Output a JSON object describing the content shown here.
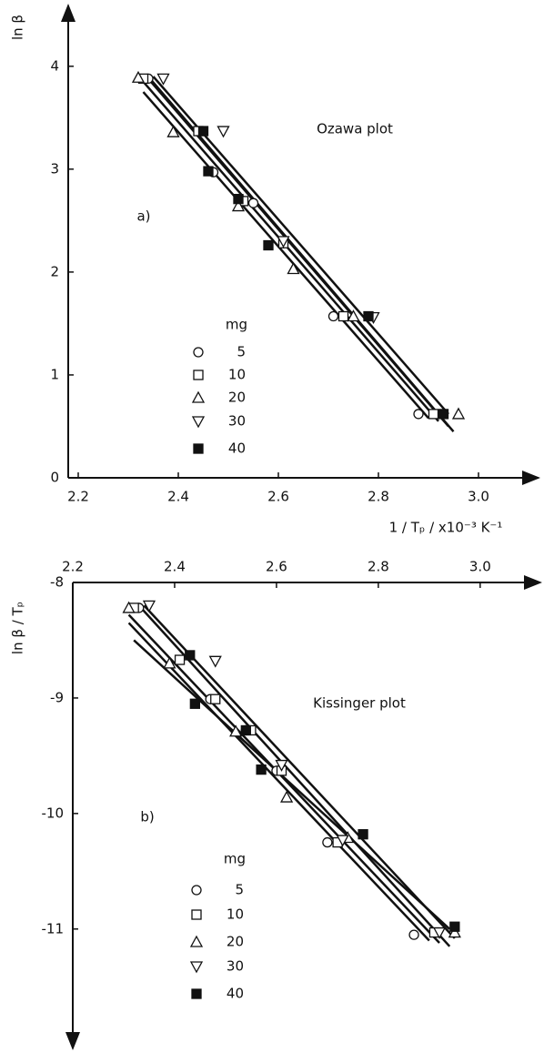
{
  "chart_data": [
    {
      "type": "scatter",
      "annotation": "Ozawa plot",
      "panel_label": "a)",
      "x_label": "1 / Tₚ / x10⁻³ K⁻¹",
      "y_label": "ln β",
      "xlim": [
        2.18,
        3.12
      ],
      "ylim": [
        0,
        4.6
      ],
      "xticks": [
        2.2,
        2.4,
        2.6,
        2.8,
        {
          "value": 3,
          "label": "3.0"
        }
      ],
      "yticks": [
        0,
        1,
        2,
        3,
        4
      ],
      "legend_title": "mg",
      "series": [
        {
          "name": "5",
          "marker": "circle",
          "color": "#111",
          "x": [
            2.34,
            2.47,
            2.55,
            2.61,
            2.71,
            2.88
          ],
          "values": [
            3.88,
            2.97,
            2.67,
            2.28,
            1.57,
            0.62
          ],
          "fit": {
            "x": [
              2.33,
              2.9
            ],
            "y": [
              3.75,
              0.58
            ]
          }
        },
        {
          "name": "10",
          "marker": "square",
          "color": "#111",
          "x": [
            2.33,
            2.44,
            2.53,
            2.61,
            2.73,
            2.91
          ],
          "values": [
            3.88,
            3.37,
            2.69,
            2.28,
            1.57,
            0.62
          ],
          "fit": {
            "x": [
              2.33,
              2.92
            ],
            "y": [
              3.85,
              0.55
            ]
          }
        },
        {
          "name": "20",
          "marker": "triangle-up",
          "color": "#111",
          "x": [
            2.32,
            2.39,
            2.52,
            2.63,
            2.75,
            2.96
          ],
          "values": [
            3.89,
            3.36,
            2.64,
            2.03,
            1.57,
            0.62
          ],
          "fit": {
            "x": [
              2.34,
              2.95
            ],
            "y": [
              3.9,
              0.45
            ]
          }
        },
        {
          "name": "30",
          "marker": "triangle-down",
          "color": "#111",
          "x": [
            2.37,
            2.49,
            2.61,
            2.79
          ],
          "values": [
            3.88,
            3.37,
            2.3,
            1.56
          ],
          "fit": {
            "x": [
              2.35,
              2.94
            ],
            "y": [
              3.9,
              0.62
            ]
          }
        },
        {
          "name": "40",
          "marker": "filled-square",
          "color": "#111",
          "x": [
            2.45,
            2.46,
            2.52,
            2.58,
            2.78,
            2.93
          ],
          "values": [
            3.37,
            2.98,
            2.71,
            2.26,
            1.57,
            0.62
          ],
          "fit": {
            "x": [
              2.34,
              2.94
            ],
            "y": [
              3.88,
              0.5
            ]
          }
        }
      ]
    },
    {
      "type": "scatter",
      "annotation": "Kissinger plot",
      "panel_label": "b)",
      "y_label": "ln β / Tₚ",
      "xlim": [
        2.2,
        3.12
      ],
      "ylim": [
        -11.9,
        -8
      ],
      "xticks": [
        2.2,
        2.4,
        2.6,
        2.8,
        {
          "value": 3,
          "label": "3.0"
        }
      ],
      "yticks": [
        -8,
        -9,
        -10,
        -11
      ],
      "legend_title": "mg",
      "series": [
        {
          "name": "5",
          "marker": "circle",
          "color": "#111",
          "x": [
            2.33,
            2.47,
            2.54,
            2.6,
            2.7,
            2.87
          ],
          "values": [
            -8.22,
            -9.01,
            -9.28,
            -9.63,
            -10.25,
            -11.05
          ],
          "fit": {
            "x": [
              2.31,
              2.9
            ],
            "y": [
              -8.35,
              -11.1
            ]
          }
        },
        {
          "name": "10",
          "marker": "square",
          "color": "#111",
          "x": [
            2.32,
            2.41,
            2.48,
            2.55,
            2.61,
            2.72,
            2.91
          ],
          "values": [
            -8.22,
            -8.67,
            -9.01,
            -9.28,
            -9.63,
            -10.25,
            -11.03
          ],
          "fit": {
            "x": [
              2.31,
              2.92
            ],
            "y": [
              -8.28,
              -11.12
            ]
          }
        },
        {
          "name": "20",
          "marker": "triangle-up",
          "color": "#111",
          "x": [
            2.31,
            2.39,
            2.52,
            2.62,
            2.74,
            2.95
          ],
          "values": [
            -8.22,
            -8.7,
            -9.29,
            -9.86,
            -10.21,
            -11.03
          ],
          "fit": {
            "x": [
              2.33,
              2.94
            ],
            "y": [
              -8.2,
              -11.15
            ]
          }
        },
        {
          "name": "30",
          "marker": "triangle-down",
          "color": "#111",
          "x": [
            2.35,
            2.48,
            2.61,
            2.73,
            2.92
          ],
          "values": [
            -8.2,
            -8.68,
            -9.58,
            -10.23,
            -11.03
          ],
          "fit": {
            "x": [
              2.32,
              2.94
            ],
            "y": [
              -8.5,
              -11.0
            ]
          }
        },
        {
          "name": "40",
          "marker": "filled-square",
          "color": "#111",
          "x": [
            2.43,
            2.44,
            2.54,
            2.57,
            2.77,
            2.95
          ],
          "values": [
            -8.63,
            -9.05,
            -9.28,
            -9.62,
            -10.18,
            -10.98
          ],
          "fit": {
            "x": [
              2.34,
              2.95
            ],
            "y": [
              -8.2,
              -11.08
            ]
          }
        }
      ]
    }
  ]
}
